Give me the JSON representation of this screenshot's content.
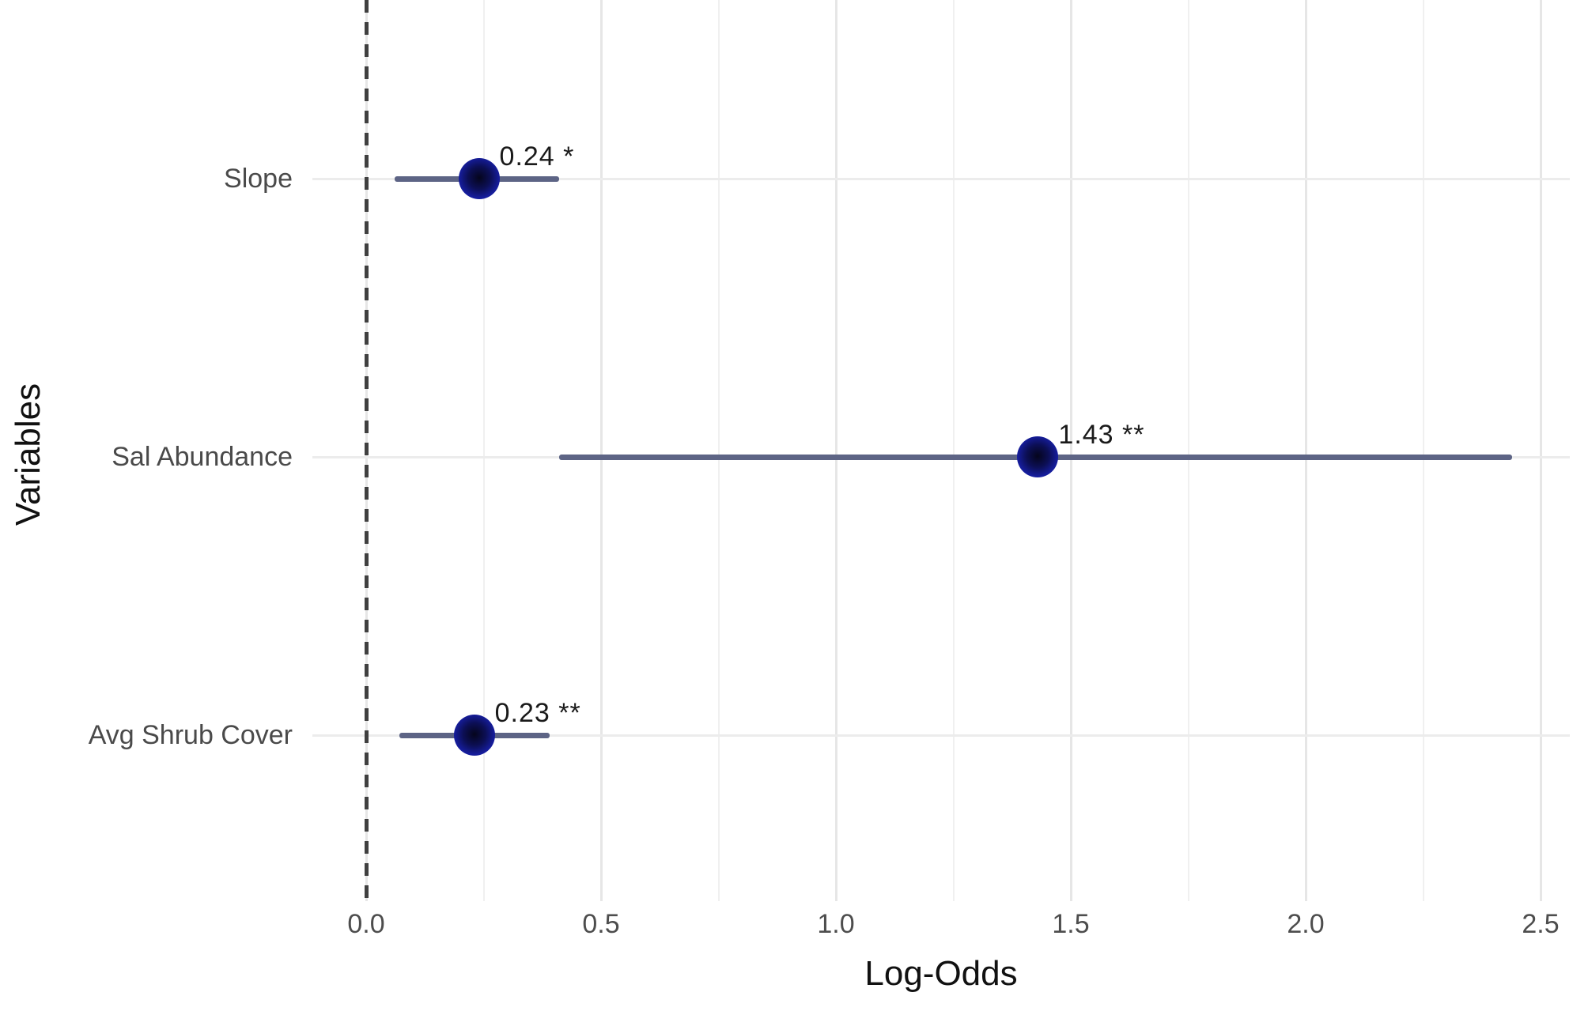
{
  "chart_data": {
    "type": "scatter",
    "subtype": "forest-plot-dot-whisker",
    "title": "",
    "xlabel": "Log-Odds",
    "ylabel": "Variables",
    "xlim": [
      -0.11,
      2.56
    ],
    "x_major_ticks": [
      0.0,
      0.5,
      1.0,
      1.5,
      2.0,
      2.5
    ],
    "x_minor_ticks": [
      0.25,
      0.75,
      1.25,
      1.75,
      2.25
    ],
    "x_tick_labels": [
      "0.0",
      "0.5",
      "1.0",
      "1.5",
      "2.0",
      "2.5"
    ],
    "grid": "on",
    "legend": "none",
    "reference_line_x": 0.0,
    "reference_line_style": "dashed",
    "categories": [
      "Slope",
      "Sal Abundance",
      "Avg Shrub Cover"
    ],
    "points": [
      {
        "variable": "Slope",
        "estimate": 0.24,
        "ci_low": 0.06,
        "ci_high": 0.41,
        "significance": "*",
        "label": "0.24 *"
      },
      {
        "variable": "Sal Abundance",
        "estimate": 1.43,
        "ci_low": 0.41,
        "ci_high": 2.44,
        "significance": "**",
        "label": "1.43 **"
      },
      {
        "variable": "Avg Shrub Cover",
        "estimate": 0.23,
        "ci_low": 0.07,
        "ci_high": 0.39,
        "significance": "**",
        "label": "0.23 **"
      }
    ],
    "style": {
      "point_color": "#1c24ac",
      "point_core_color": "#05051c",
      "ci_color": "#5d6485",
      "reference_line_color": "#404040",
      "grid_major_color": "#e6e6e6",
      "grid_minor_color": "#f0f0f0",
      "row_line_color": "#ececec",
      "tick_label_color": "#4d4d4d",
      "category_label_color": "#4a4a4a",
      "value_label_color": "#1a1a1a",
      "axis_title_color": "#111111",
      "background_color": "#ffffff"
    }
  }
}
